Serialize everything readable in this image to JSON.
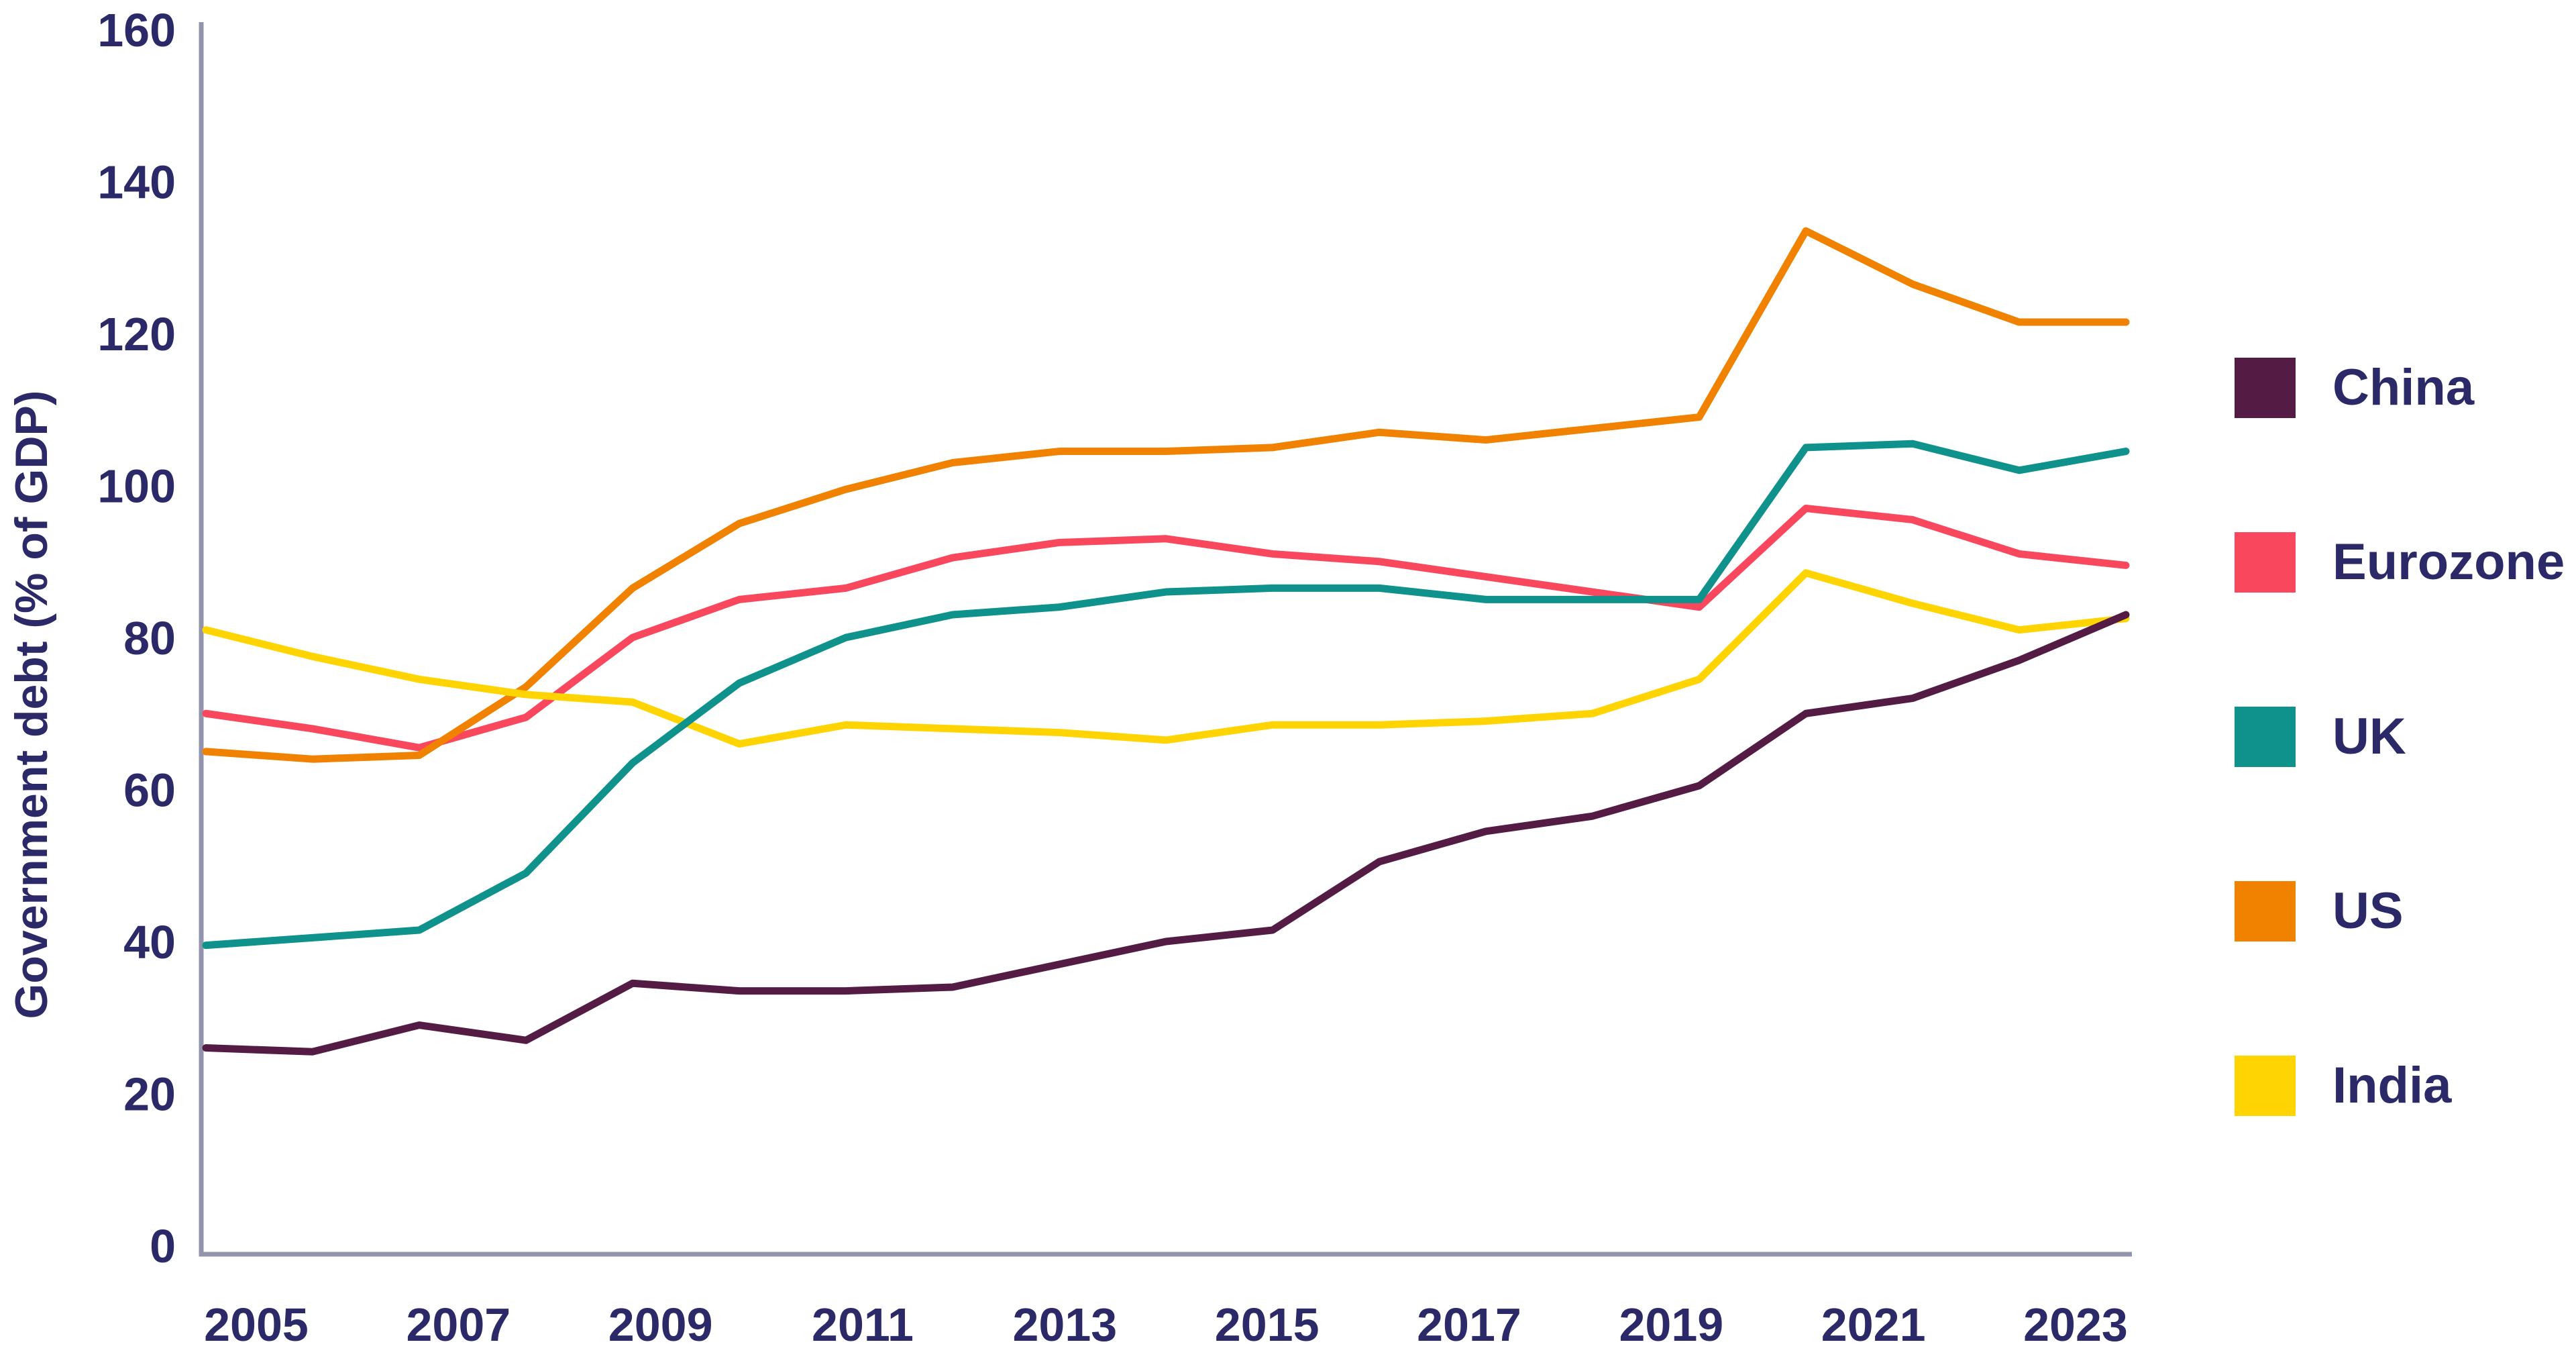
{
  "page": {
    "background": "#FFFFFF"
  },
  "chart_data": {
    "type": "line",
    "title": "",
    "xlabel": "",
    "ylabel": "Government debt (% of GDP)",
    "x": [
      2005,
      2006,
      2007,
      2008,
      2009,
      2010,
      2011,
      2012,
      2013,
      2014,
      2015,
      2016,
      2017,
      2018,
      2019,
      2020,
      2021,
      2022,
      2023
    ],
    "series": [
      {
        "name": "China",
        "color": "#541B44",
        "values": [
          26,
          25.5,
          29,
          27,
          34.5,
          33.5,
          33.5,
          34,
          37,
          40,
          41.5,
          50.5,
          54.5,
          56.5,
          60.5,
          70,
          72,
          77,
          83
        ]
      },
      {
        "name": "Eurozone",
        "color": "#F9485E",
        "values": [
          70,
          68,
          65.5,
          69.5,
          80,
          85,
          86.5,
          90.5,
          92.5,
          93,
          91,
          90,
          88,
          86,
          84,
          97,
          95.5,
          91,
          89.5
        ]
      },
      {
        "name": "UK",
        "color": "#0F918C",
        "values": [
          39.5,
          40.5,
          41.5,
          49,
          63.5,
          74,
          80,
          83,
          84,
          86,
          86.5,
          86.5,
          85,
          85,
          85,
          105,
          105.5,
          102,
          104.5
        ]
      },
      {
        "name": "US",
        "color": "#F08200",
        "values": [
          65,
          64,
          64.5,
          73.5,
          86.5,
          95,
          99.5,
          103,
          104.5,
          104.5,
          105,
          107,
          106,
          107.5,
          109,
          133.5,
          126.5,
          121.5,
          121.5
        ]
      },
      {
        "name": "India",
        "color": "#FFD400",
        "values": [
          81,
          77.5,
          74.5,
          72.5,
          71.5,
          66,
          68.5,
          68,
          67.5,
          66.5,
          68.5,
          68.5,
          69,
          70,
          74.5,
          88.5,
          84.5,
          81,
          82.5
        ]
      }
    ],
    "ylim": [
      0,
      160
    ],
    "yticks": [
      0,
      20,
      40,
      60,
      80,
      100,
      120,
      140,
      160
    ],
    "xtick_labels": [
      "2005",
      "2007",
      "2009",
      "2011",
      "2013",
      "2015",
      "2017",
      "2019",
      "2021",
      "2023"
    ],
    "grid": false,
    "legend_position": "right",
    "axis_color": "#9294AB",
    "text_color": "#2B2968",
    "line_width": 11
  }
}
